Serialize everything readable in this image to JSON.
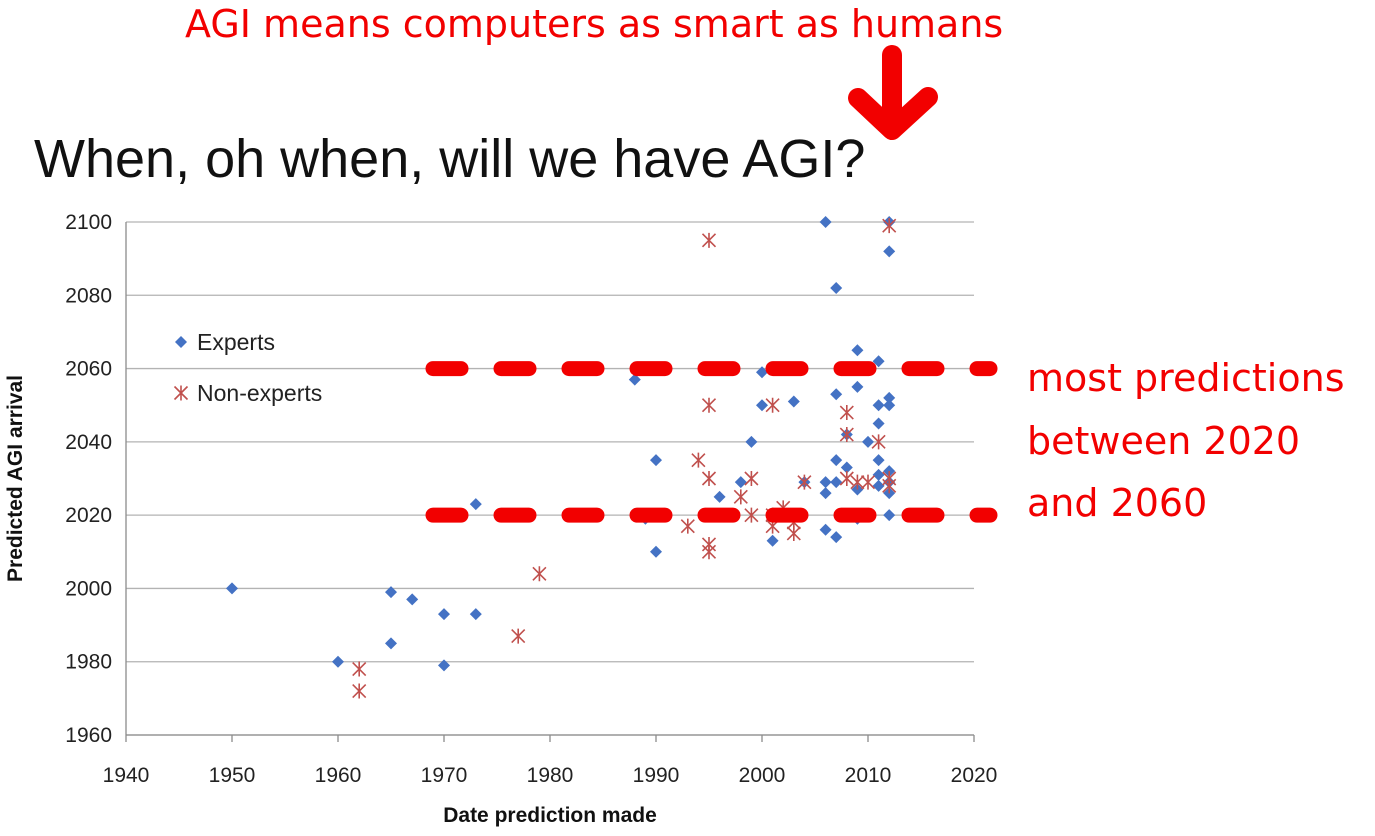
{
  "annotations": {
    "top_note": "AGI means computers as smart as humans",
    "side_note_lines": [
      "most predictions",
      "between 2020",
      "and 2060"
    ],
    "highlight_color": "#f20000",
    "highlight_lines_y": [
      2060,
      2020
    ],
    "arrow": "arrow-down-icon"
  },
  "chart_data": {
    "type": "scatter",
    "title": "When, oh when, will we have AGI?",
    "xlabel": "Date prediction made",
    "ylabel": "Predicted AGI arrival",
    "xlim": [
      1940,
      2020
    ],
    "ylim": [
      1960,
      2100
    ],
    "xticks": [
      1940,
      1950,
      1960,
      1970,
      1980,
      1990,
      2000,
      2010,
      2020
    ],
    "yticks": [
      1960,
      1980,
      2000,
      2020,
      2040,
      2060,
      2080,
      2100
    ],
    "grid": "horizontal",
    "legend_position": "top-left",
    "series": [
      {
        "name": "Experts",
        "marker": "diamond",
        "color": "#4472c4",
        "points": [
          [
            1950,
            2000
          ],
          [
            1960,
            1980
          ],
          [
            1965,
            1999
          ],
          [
            1965,
            1985
          ],
          [
            1967,
            1997
          ],
          [
            1970,
            1993
          ],
          [
            1970,
            1979
          ],
          [
            1973,
            2023
          ],
          [
            1973,
            1993
          ],
          [
            1988,
            2057
          ],
          [
            1989,
            2019
          ],
          [
            1990,
            2035
          ],
          [
            1990,
            2010
          ],
          [
            1996,
            2025
          ],
          [
            1998,
            2029
          ],
          [
            1999,
            2040
          ],
          [
            2000,
            2059
          ],
          [
            2000,
            2050
          ],
          [
            2001,
            2013
          ],
          [
            2003,
            2051
          ],
          [
            2004,
            2029
          ],
          [
            2006,
            2100
          ],
          [
            2006,
            2029
          ],
          [
            2006,
            2026
          ],
          [
            2006,
            2016
          ],
          [
            2007,
            2082
          ],
          [
            2007,
            2053
          ],
          [
            2007,
            2035
          ],
          [
            2007,
            2029
          ],
          [
            2007,
            2014
          ],
          [
            2008,
            2042
          ],
          [
            2008,
            2033
          ],
          [
            2008,
            2020
          ],
          [
            2009,
            2065
          ],
          [
            2009,
            2055
          ],
          [
            2009,
            2027
          ],
          [
            2009,
            2019
          ],
          [
            2010,
            2040
          ],
          [
            2011,
            2062
          ],
          [
            2011,
            2050
          ],
          [
            2011,
            2045
          ],
          [
            2011,
            2035
          ],
          [
            2011,
            2031
          ],
          [
            2011,
            2028
          ],
          [
            2012,
            2100
          ],
          [
            2012,
            2092
          ],
          [
            2012,
            2052
          ],
          [
            2012,
            2050
          ],
          [
            2012,
            2032
          ],
          [
            2012,
            2029
          ],
          [
            2012,
            2026
          ],
          [
            2012,
            2020
          ]
        ]
      },
      {
        "name": "Non-experts",
        "marker": "asterisk",
        "color": "#c0504d",
        "points": [
          [
            1962,
            1978
          ],
          [
            1962,
            1972
          ],
          [
            1977,
            1987
          ],
          [
            1979,
            2004
          ],
          [
            1993,
            2017
          ],
          [
            1994,
            2035
          ],
          [
            1995,
            2095
          ],
          [
            1995,
            2050
          ],
          [
            1995,
            2030
          ],
          [
            1995,
            2012
          ],
          [
            1995,
            2010
          ],
          [
            1998,
            2025
          ],
          [
            1999,
            2030
          ],
          [
            1999,
            2020
          ],
          [
            2001,
            2050
          ],
          [
            2001,
            2020
          ],
          [
            2001,
            2017
          ],
          [
            2002,
            2022
          ],
          [
            2003,
            2018
          ],
          [
            2003,
            2015
          ],
          [
            2004,
            2029
          ],
          [
            2008,
            2048
          ],
          [
            2008,
            2042
          ],
          [
            2008,
            2030
          ],
          [
            2009,
            2029
          ],
          [
            2010,
            2029
          ],
          [
            2011,
            2040
          ],
          [
            2012,
            2099
          ],
          [
            2012,
            2030
          ],
          [
            2012,
            2028
          ]
        ]
      }
    ]
  }
}
